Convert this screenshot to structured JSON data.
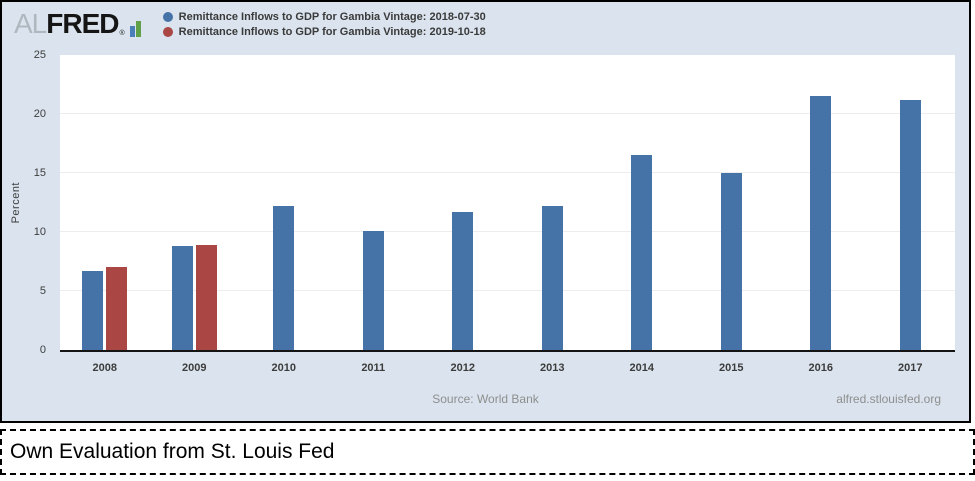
{
  "logo": {
    "prefix": "AL",
    "brand": "FRED",
    "registered": "®"
  },
  "legend": {
    "items": [
      {
        "label": "Remittance Inflows to GDP for Gambia Vintage: 2018-07-30",
        "color": "#4572a7"
      },
      {
        "label": "Remittance Inflows to GDP for Gambia Vintage: 2019-10-18",
        "color": "#aa4643"
      }
    ]
  },
  "chart_data": {
    "type": "bar",
    "title": "",
    "xlabel": "",
    "ylabel": "Percent",
    "ylim": [
      0,
      25
    ],
    "yticks": [
      0,
      5,
      10,
      15,
      20,
      25
    ],
    "grid": true,
    "legend_position": "top-left",
    "categories": [
      "2008",
      "2009",
      "2010",
      "2011",
      "2012",
      "2013",
      "2014",
      "2015",
      "2016",
      "2017"
    ],
    "series": [
      {
        "name": "Remittance Inflows to GDP for Gambia Vintage: 2018-07-30",
        "color": "#4572a7",
        "values": [
          6.7,
          8.8,
          12.2,
          10.1,
          11.7,
          12.2,
          16.5,
          15.0,
          21.5,
          21.2
        ]
      },
      {
        "name": "Remittance Inflows to GDP for Gambia Vintage: 2019-10-18",
        "color": "#aa4643",
        "values": [
          7.0,
          8.9,
          null,
          null,
          null,
          null,
          null,
          null,
          null,
          null
        ]
      }
    ]
  },
  "footer": {
    "source": "Source: World Bank",
    "site": "alfred.stlouisfed.org"
  },
  "caption": {
    "text": "Own Evaluation from St. Louis Fed"
  },
  "colors": {
    "chart_background": "#dbe4ee",
    "plot_background": "#ffffff",
    "gridline": "#ededed",
    "axis": "#141414",
    "series_blue": "#4572a7",
    "series_red": "#aa4643",
    "logo_gray": "#afb7bf",
    "logo_black": "#151515",
    "logo_icon_blue": "#4a7fba",
    "logo_icon_green": "#5fa048",
    "footer_text": "#8e8e8e"
  }
}
